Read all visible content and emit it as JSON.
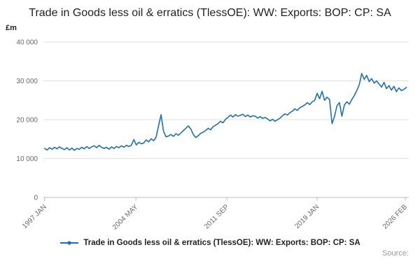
{
  "title": "Trade in Goods less oil & erratics (TlessOE): WW: Exports: BOP: CP: SA",
  "y_unit_label": "£m",
  "source_label": "Source:",
  "legend": {
    "label": "Trade in Goods less oil & erratics (TlessOE): WW: Exports: BOP: CP: SA"
  },
  "colors": {
    "line": "#1d70b8",
    "grid": "#e0e0e0",
    "axis": "#bdbdbd",
    "tick_text": "#666666"
  },
  "chart_data": {
    "type": "line",
    "title": "Trade in Goods less oil & erratics (TlessOE): WW: Exports: BOP: CP: SA",
    "xlabel": "",
    "ylabel": "£m",
    "legend_position": "bottom",
    "grid": true,
    "xlim": [
      1996.9,
      2026.4
    ],
    "ylim": [
      0,
      40000
    ],
    "x_start": 1997.0,
    "x_step": 0.2,
    "x_ticks": [
      {
        "x": 1997.0,
        "label": "1997 JAN"
      },
      {
        "x": 2004.37,
        "label": "2004 MAY"
      },
      {
        "x": 2011.71,
        "label": "2011 SEP"
      },
      {
        "x": 2019.0,
        "label": "2019 JAN"
      },
      {
        "x": 2026.12,
        "label": "2026 FEB"
      }
    ],
    "y_ticks": [
      {
        "v": 0,
        "label": "0"
      },
      {
        "v": 10000,
        "label": "10 000"
      },
      {
        "v": 20000,
        "label": "20 000"
      },
      {
        "v": 30000,
        "label": "30 000"
      },
      {
        "v": 40000,
        "label": "40 000"
      }
    ],
    "values": [
      12600,
      12200,
      12800,
      12400,
      12900,
      12500,
      13000,
      12600,
      12300,
      12800,
      12200,
      12700,
      12100,
      12600,
      12400,
      12900,
      12500,
      13100,
      12600,
      13000,
      13300,
      12800,
      13400,
      12900,
      12600,
      12900,
      12400,
      13000,
      12600,
      13100,
      12800,
      13300,
      12900,
      13400,
      13100,
      13400,
      14900,
      13500,
      14200,
      13800,
      14000,
      14800,
      14300,
      15100,
      14600,
      15500,
      18500,
      21300,
      17000,
      15600,
      15800,
      16200,
      15700,
      16400,
      16000,
      16600,
      17200,
      17800,
      18400,
      17600,
      16200,
      15400,
      15900,
      16500,
      16800,
      17200,
      17800,
      17400,
      18200,
      18600,
      19000,
      19600,
      19200,
      20100,
      20600,
      21200,
      20700,
      21300,
      20900,
      21100,
      21400,
      20800,
      21200,
      20700,
      21000,
      20900,
      20400,
      20800,
      20300,
      20600,
      20200,
      19700,
      20100,
      19600,
      20000,
      20400,
      21000,
      21500,
      21200,
      21800,
      22200,
      22800,
      22400,
      23100,
      23400,
      23800,
      24400,
      23900,
      24600,
      25000,
      26800,
      25400,
      27300,
      25000,
      25800,
      25200,
      19000,
      20800,
      23600,
      24400,
      20900,
      23800,
      24600,
      24000,
      25200,
      26200,
      27500,
      29000,
      31900,
      30400,
      31400,
      29800,
      30600,
      29400,
      30000,
      29200,
      28400,
      29600,
      28000,
      28800,
      27600,
      28600,
      27200,
      28200,
      27500,
      27800,
      28300
    ]
  }
}
